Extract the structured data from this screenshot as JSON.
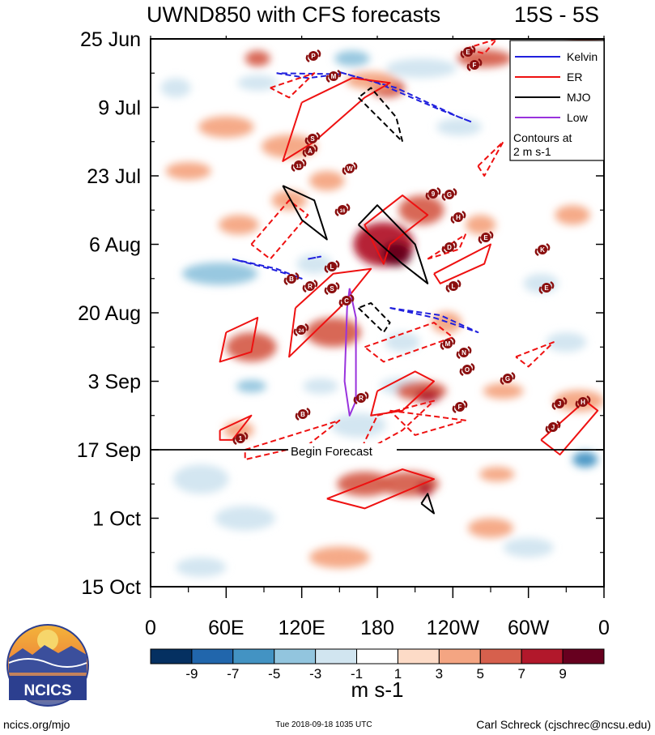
{
  "chart_data": {
    "type": "heatmap",
    "title": "UWND850 with CFS forecasts",
    "region": "15S - 5S",
    "y_tick_labels": [
      "25 Jun",
      "9 Jul",
      "23 Jul",
      "6 Aug",
      "20 Aug",
      "3 Sep",
      "17 Sep",
      "1 Oct",
      "15 Oct"
    ],
    "x_tick_labels": [
      "0",
      "60E",
      "120E",
      "180",
      "120W",
      "60W",
      "0"
    ],
    "x_range_deg_east": [
      0,
      360
    ],
    "time_range_days_since_25jun": [
      0,
      112
    ],
    "forecast_start": {
      "label": "Begin Forecast",
      "day": 84
    },
    "colorbar": {
      "labels": [
        "-9",
        "-7",
        "-5",
        "-3",
        "-1",
        "1",
        "3",
        "5",
        "7",
        "9"
      ],
      "units": "m s-1",
      "colors": [
        "#053061",
        "#2166ac",
        "#4393c3",
        "#92c5de",
        "#d1e5f0",
        "#ffffff",
        "#fddbc7",
        "#f4a582",
        "#d6604d",
        "#b2182b",
        "#67001f"
      ]
    },
    "legend": {
      "entries": [
        {
          "name": "Kelvin",
          "color": "#2020dd"
        },
        {
          "name": "ER",
          "color": "#ee1111"
        },
        {
          "name": "MJO",
          "color": "#000000"
        },
        {
          "name": "Low",
          "color": "#9933dd"
        }
      ],
      "note_line1": "Contours at",
      "note_line2": "2 m s-1"
    },
    "anomaly_blobs": [
      {
        "lon": 85,
        "day": 4,
        "lon_w": 10,
        "day_w": 1.6,
        "value": 5
      },
      {
        "lon": 160,
        "day": 4,
        "lon_w": 14,
        "day_w": 1.6,
        "value": -5
      },
      {
        "lon": 188,
        "day": 10,
        "lon_w": 14,
        "day_w": 2,
        "value": 5
      },
      {
        "lon": 175,
        "day": 8.5,
        "lon_w": 20,
        "day_w": 1.8,
        "value": 3
      },
      {
        "lon": 215,
        "day": 6,
        "lon_w": 28,
        "day_w": 2,
        "value": -3
      },
      {
        "lon": 265,
        "day": 4,
        "lon_w": 22,
        "day_w": 1.8,
        "value": 5
      },
      {
        "lon": 345,
        "day": 1,
        "lon_w": 14,
        "day_w": 2,
        "value": 5
      },
      {
        "lon": 20,
        "day": 10,
        "lon_w": 12,
        "day_w": 2,
        "value": -3
      },
      {
        "lon": 85,
        "day": 9,
        "lon_w": 16,
        "day_w": 1.6,
        "value": -3
      },
      {
        "lon": 60,
        "day": 18,
        "lon_w": 22,
        "day_w": 2.2,
        "value": 3
      },
      {
        "lon": 245,
        "day": 18,
        "lon_w": 18,
        "day_w": 1.8,
        "value": -3
      },
      {
        "lon": 320,
        "day": 20,
        "lon_w": 20,
        "day_w": 2,
        "value": 3
      },
      {
        "lon": 110,
        "day": 22,
        "lon_w": 22,
        "day_w": 2.4,
        "value": 3
      },
      {
        "lon": 30,
        "day": 27,
        "lon_w": 18,
        "day_w": 1.8,
        "value": 3
      },
      {
        "lon": 140,
        "day": 29,
        "lon_w": 14,
        "day_w": 2,
        "value": 3
      },
      {
        "lon": 185,
        "day": 42,
        "lon_w": 24,
        "day_w": 4.5,
        "value": 7
      },
      {
        "lon": 195,
        "day": 44,
        "lon_w": 12,
        "day_w": 2.5,
        "value": 9
      },
      {
        "lon": 215,
        "day": 35,
        "lon_w": 18,
        "day_w": 3,
        "value": 5
      },
      {
        "lon": 262,
        "day": 38,
        "lon_w": 12,
        "day_w": 2,
        "value": 3
      },
      {
        "lon": 335,
        "day": 36,
        "lon_w": 14,
        "day_w": 2,
        "value": 3
      },
      {
        "lon": 55,
        "day": 48,
        "lon_w": 30,
        "day_w": 2.3,
        "value": -5
      },
      {
        "lon": 70,
        "day": 38,
        "lon_w": 16,
        "day_w": 2,
        "value": 3
      },
      {
        "lon": 110,
        "day": 33,
        "lon_w": 14,
        "day_w": 2,
        "value": 3
      },
      {
        "lon": 130,
        "day": 46,
        "lon_w": 14,
        "day_w": 2,
        "value": -3
      },
      {
        "lon": 235,
        "day": 58,
        "lon_w": 12,
        "day_w": 2.2,
        "value": 3
      },
      {
        "lon": 310,
        "day": 50,
        "lon_w": 14,
        "day_w": 2,
        "value": -3
      },
      {
        "lon": 80,
        "day": 63,
        "lon_w": 20,
        "day_w": 3,
        "value": 5
      },
      {
        "lon": 145,
        "day": 60,
        "lon_w": 22,
        "day_w": 3,
        "value": 5
      },
      {
        "lon": 200,
        "day": 62,
        "lon_w": 14,
        "day_w": 2,
        "value": -3
      },
      {
        "lon": 330,
        "day": 62,
        "lon_w": 16,
        "day_w": 2,
        "value": -3
      },
      {
        "lon": 80,
        "day": 71,
        "lon_w": 12,
        "day_w": 1.3,
        "value": -5
      },
      {
        "lon": 135,
        "day": 71,
        "lon_w": 14,
        "day_w": 1.6,
        "value": -3
      },
      {
        "lon": 200,
        "day": 71,
        "lon_w": 18,
        "day_w": 1.8,
        "value": -3
      },
      {
        "lon": 215,
        "day": 72,
        "lon_w": 20,
        "day_w": 2,
        "value": 5
      },
      {
        "lon": 220,
        "day": 73,
        "lon_w": 10,
        "day_w": 1.3,
        "value": 7
      },
      {
        "lon": 280,
        "day": 72,
        "lon_w": 16,
        "day_w": 1.6,
        "value": 3
      },
      {
        "lon": 340,
        "day": 74,
        "lon_w": 20,
        "day_w": 2.2,
        "value": 3
      },
      {
        "lon": 70,
        "day": 80,
        "lon_w": 12,
        "day_w": 1.8,
        "value": 3
      },
      {
        "lon": 165,
        "day": 79,
        "lon_w": 22,
        "day_w": 2.5,
        "value": -3
      },
      {
        "lon": 345,
        "day": 86,
        "lon_w": 10,
        "day_w": 1.6,
        "value": -7
      },
      {
        "lon": 40,
        "day": 90,
        "lon_w": 22,
        "day_w": 3,
        "value": -3
      },
      {
        "lon": 170,
        "day": 91,
        "lon_w": 22,
        "day_w": 2.5,
        "value": 5
      },
      {
        "lon": 205,
        "day": 91,
        "lon_w": 24,
        "day_w": 2.5,
        "value": 5
      },
      {
        "lon": 218,
        "day": 92,
        "lon_w": 6,
        "day_w": 1.5,
        "value": 7
      },
      {
        "lon": 275,
        "day": 89,
        "lon_w": 14,
        "day_w": 1.5,
        "value": 3
      },
      {
        "lon": 75,
        "day": 98,
        "lon_w": 24,
        "day_w": 2.5,
        "value": -3
      },
      {
        "lon": 270,
        "day": 100,
        "lon_w": 18,
        "day_w": 2,
        "value": 3
      },
      {
        "lon": 300,
        "day": 104,
        "lon_w": 20,
        "day_w": 2,
        "value": -3
      },
      {
        "lon": 150,
        "day": 106,
        "lon_w": 24,
        "day_w": 2.2,
        "value": 3
      },
      {
        "lon": 40,
        "day": 108,
        "lon_w": 20,
        "day_w": 2,
        "value": -3
      }
    ],
    "wave_contours": [
      {
        "type": "kelvin",
        "value": -2,
        "points": [
          [
            100,
            7
          ],
          [
            125,
            8
          ],
          [
            150,
            7.2
          ],
          [
            100,
            7
          ]
        ]
      },
      {
        "type": "kelvin",
        "value": -2,
        "points": [
          [
            150,
            6.8
          ],
          [
            195,
            10
          ],
          [
            245,
            16
          ],
          [
            255,
            17
          ],
          [
            230,
            14.5
          ],
          [
            180,
            9
          ],
          [
            150,
            6.8
          ]
        ]
      },
      {
        "type": "kelvin",
        "value": -2,
        "points": [
          [
            65,
            45
          ],
          [
            100,
            47
          ],
          [
            120,
            49
          ],
          [
            95,
            47
          ],
          [
            65,
            45
          ]
        ]
      },
      {
        "type": "kelvin",
        "value": -2,
        "points": [
          [
            125,
            45
          ],
          [
            135,
            44.5
          ],
          [
            125,
            45
          ]
        ]
      },
      {
        "type": "kelvin",
        "value": -2,
        "points": [
          [
            190,
            55
          ],
          [
            225,
            57
          ],
          [
            260,
            60
          ],
          [
            230,
            56.5
          ],
          [
            190,
            55
          ]
        ]
      },
      {
        "type": "er",
        "value": 2,
        "points": [
          [
            120,
            13
          ],
          [
            160,
            8
          ],
          [
            190,
            9
          ],
          [
            170,
            12
          ],
          [
            130,
            21
          ],
          [
            105,
            25
          ],
          [
            120,
            13
          ]
        ]
      },
      {
        "type": "er",
        "value": 2,
        "points": [
          [
            190,
            42
          ],
          [
            220,
            36
          ],
          [
            200,
            32
          ],
          [
            170,
            38
          ],
          [
            185,
            46
          ],
          [
            190,
            42
          ]
        ]
      },
      {
        "type": "er",
        "value": 2,
        "points": [
          [
            115,
            55
          ],
          [
            145,
            48
          ],
          [
            175,
            47
          ],
          [
            150,
            55
          ],
          [
            110,
            65
          ],
          [
            115,
            55
          ]
        ]
      },
      {
        "type": "er",
        "value": 2,
        "points": [
          [
            60,
            60
          ],
          [
            85,
            57
          ],
          [
            80,
            64
          ],
          [
            55,
            66
          ],
          [
            60,
            60
          ]
        ]
      },
      {
        "type": "er",
        "value": 2,
        "points": [
          [
            180,
            72
          ],
          [
            210,
            68
          ],
          [
            225,
            70
          ],
          [
            200,
            76
          ],
          [
            175,
            77
          ],
          [
            180,
            72
          ]
        ]
      },
      {
        "type": "er",
        "value": 2,
        "points": [
          [
            225,
            48
          ],
          [
            270,
            42
          ],
          [
            265,
            46
          ],
          [
            230,
            50
          ],
          [
            225,
            48
          ]
        ]
      },
      {
        "type": "er",
        "value": 2,
        "points": [
          [
            55,
            80
          ],
          [
            80,
            77
          ],
          [
            65,
            82
          ],
          [
            55,
            82
          ],
          [
            55,
            80
          ]
        ]
      },
      {
        "type": "er",
        "value": 2,
        "points": [
          [
            300,
            4
          ],
          [
            325,
            2
          ],
          [
            320,
            6
          ],
          [
            300,
            4
          ]
        ]
      },
      {
        "type": "er",
        "value": 2,
        "points": [
          [
            310,
            82
          ],
          [
            345,
            74
          ],
          [
            355,
            76
          ],
          [
            325,
            85
          ],
          [
            310,
            82
          ]
        ]
      },
      {
        "type": "er",
        "value": 2,
        "points": [
          [
            140,
            94
          ],
          [
            200,
            88
          ],
          [
            225,
            90
          ],
          [
            170,
            96
          ],
          [
            140,
            94
          ]
        ]
      },
      {
        "type": "er",
        "value": -2,
        "points": [
          [
            95,
            10
          ],
          [
            130,
            7
          ],
          [
            110,
            12
          ],
          [
            95,
            10
          ]
        ]
      },
      {
        "type": "er",
        "value": -2,
        "points": [
          [
            80,
            42
          ],
          [
            110,
            33
          ],
          [
            125,
            36
          ],
          [
            95,
            45
          ],
          [
            80,
            42
          ]
        ]
      },
      {
        "type": "er",
        "value": -2,
        "points": [
          [
            220,
            45
          ],
          [
            250,
            40
          ],
          [
            245,
            43
          ],
          [
            220,
            45
          ]
        ]
      },
      {
        "type": "er",
        "value": -2,
        "points": [
          [
            170,
            63
          ],
          [
            225,
            58
          ],
          [
            240,
            61
          ],
          [
            185,
            66
          ],
          [
            170,
            63
          ]
        ]
      },
      {
        "type": "er",
        "value": -2,
        "points": [
          [
            180,
            77
          ],
          [
            225,
            74
          ],
          [
            200,
            80
          ],
          [
            165,
            85
          ],
          [
            180,
            77
          ]
        ]
      },
      {
        "type": "er",
        "value": -2,
        "points": [
          [
            75,
            84
          ],
          [
            150,
            78
          ],
          [
            125,
            83
          ],
          [
            75,
            86
          ],
          [
            75,
            84
          ]
        ]
      },
      {
        "type": "er",
        "value": -2,
        "points": [
          [
            190,
            76
          ],
          [
            250,
            78
          ],
          [
            210,
            81
          ],
          [
            190,
            76
          ]
        ]
      },
      {
        "type": "er",
        "value": -2,
        "points": [
          [
            260,
            26
          ],
          [
            280,
            21
          ],
          [
            265,
            28
          ],
          [
            260,
            26
          ]
        ]
      },
      {
        "type": "er",
        "value": -2,
        "points": [
          [
            290,
            65
          ],
          [
            320,
            62
          ],
          [
            300,
            67
          ],
          [
            290,
            65
          ]
        ]
      },
      {
        "type": "er",
        "value": -2,
        "points": [
          [
            250,
            2
          ],
          [
            275,
            0
          ],
          [
            265,
            3
          ],
          [
            250,
            2
          ]
        ]
      },
      {
        "type": "mjo",
        "value": 2,
        "points": [
          [
            105,
            30
          ],
          [
            120,
            37
          ],
          [
            140,
            41
          ],
          [
            130,
            33
          ],
          [
            105,
            30
          ]
        ]
      },
      {
        "type": "mjo",
        "value": 2,
        "points": [
          [
            165,
            38
          ],
          [
            200,
            46
          ],
          [
            220,
            50
          ],
          [
            210,
            42
          ],
          [
            180,
            34
          ],
          [
            165,
            38
          ]
        ]
      },
      {
        "type": "mjo",
        "value": -2,
        "points": [
          [
            165,
            12
          ],
          [
            200,
            21
          ],
          [
            195,
            16
          ],
          [
            175,
            10
          ],
          [
            165,
            12
          ]
        ]
      },
      {
        "type": "mjo",
        "value": -2,
        "points": [
          [
            165,
            55
          ],
          [
            185,
            60
          ],
          [
            190,
            58
          ],
          [
            175,
            54
          ],
          [
            165,
            55
          ]
        ]
      },
      {
        "type": "mjo",
        "value": 2,
        "points": [
          [
            215,
            95
          ],
          [
            225,
            97
          ],
          [
            220,
            93
          ],
          [
            215,
            95
          ]
        ]
      },
      {
        "type": "low",
        "value": 1,
        "points": [
          [
            158,
            51
          ],
          [
            163,
            57
          ],
          [
            163,
            74
          ],
          [
            158,
            77
          ],
          [
            154,
            70
          ],
          [
            156,
            55
          ],
          [
            158,
            51
          ]
        ]
      }
    ]
  },
  "storm_markers": [
    "P",
    "M",
    "S",
    "A",
    "13",
    "W",
    "16",
    "L",
    "B",
    "R",
    "S",
    "C",
    "24",
    "E",
    "F",
    "9",
    "G",
    "H",
    "D",
    "E",
    "K",
    "L",
    "E",
    "M",
    "N",
    "O",
    "G",
    "J",
    "H",
    "F",
    "J",
    "1",
    "B",
    "R"
  ],
  "logo": {
    "label": "NCICS"
  },
  "footer": {
    "url": "ncics.org/mjo",
    "timestamp": "Tue 2018-09-18 1035 UTC",
    "author": "Carl Schreck (cjschrec@ncsu.edu)"
  }
}
